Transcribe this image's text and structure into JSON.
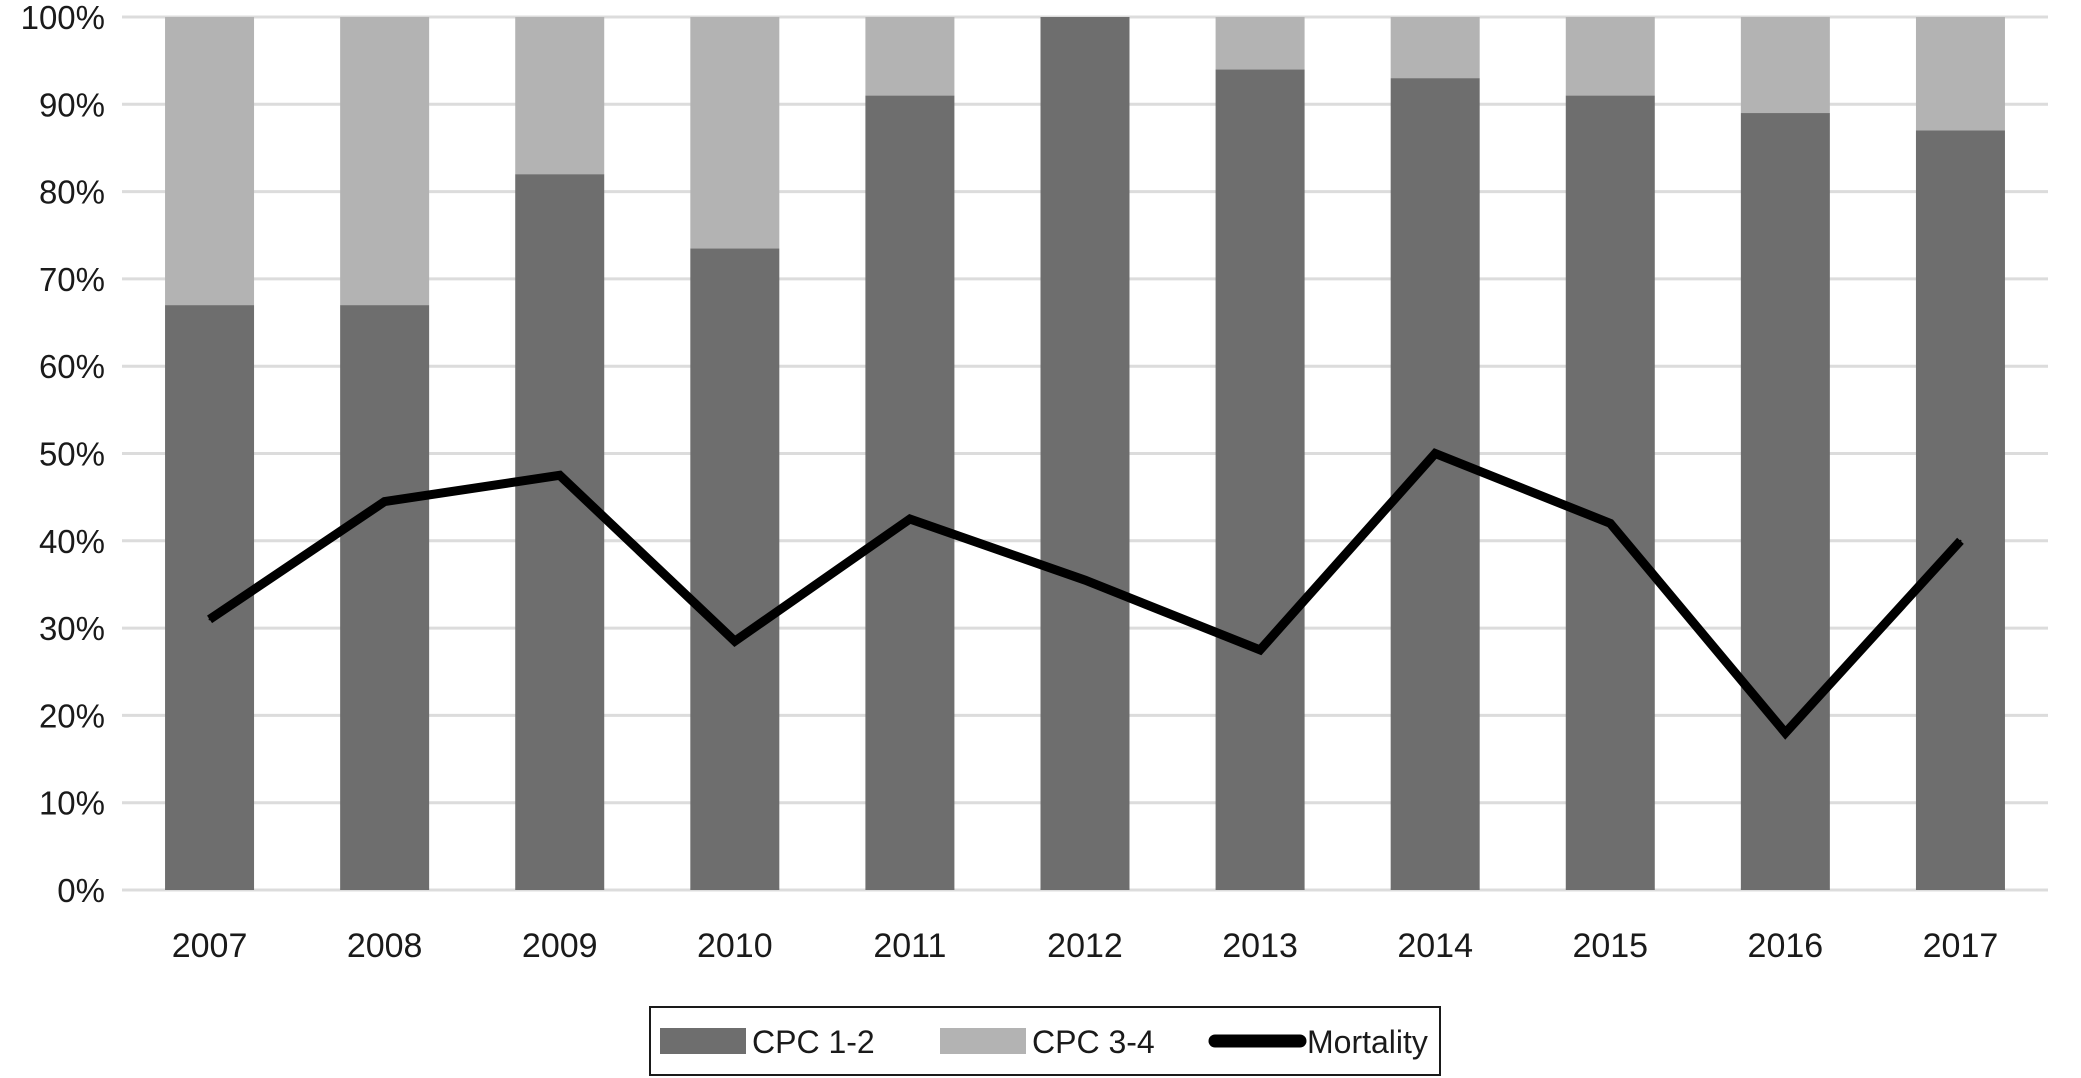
{
  "chart_data": {
    "type": "bar",
    "stacked": true,
    "title": "",
    "xlabel": "",
    "ylabel": "",
    "ylim": [
      0,
      100
    ],
    "y_unit": "%",
    "y_ticks": [
      "0%",
      "10%",
      "20%",
      "30%",
      "40%",
      "50%",
      "60%",
      "70%",
      "80%",
      "90%",
      "100%"
    ],
    "grid": true,
    "legend_position": "bottom",
    "categories": [
      "2007",
      "2008",
      "2009",
      "2010",
      "2011",
      "2012",
      "2013",
      "2014",
      "2015",
      "2016",
      "2017"
    ],
    "series": [
      {
        "name": "CPC 1-2",
        "type": "bar",
        "color": "#6e6e6e",
        "values": [
          67,
          67,
          82,
          73.5,
          91,
          100,
          94,
          93,
          91,
          89,
          87
        ]
      },
      {
        "name": "CPC 3-4",
        "type": "bar",
        "color": "#b3b3b3",
        "values": [
          33,
          33,
          18,
          26.5,
          9,
          0,
          6,
          7,
          9,
          11,
          13
        ]
      },
      {
        "name": "Mortality",
        "type": "line",
        "color": "#000000",
        "values": [
          31,
          44.5,
          47.5,
          28.5,
          42.5,
          35.5,
          27.5,
          50,
          42,
          18,
          40
        ]
      }
    ]
  }
}
